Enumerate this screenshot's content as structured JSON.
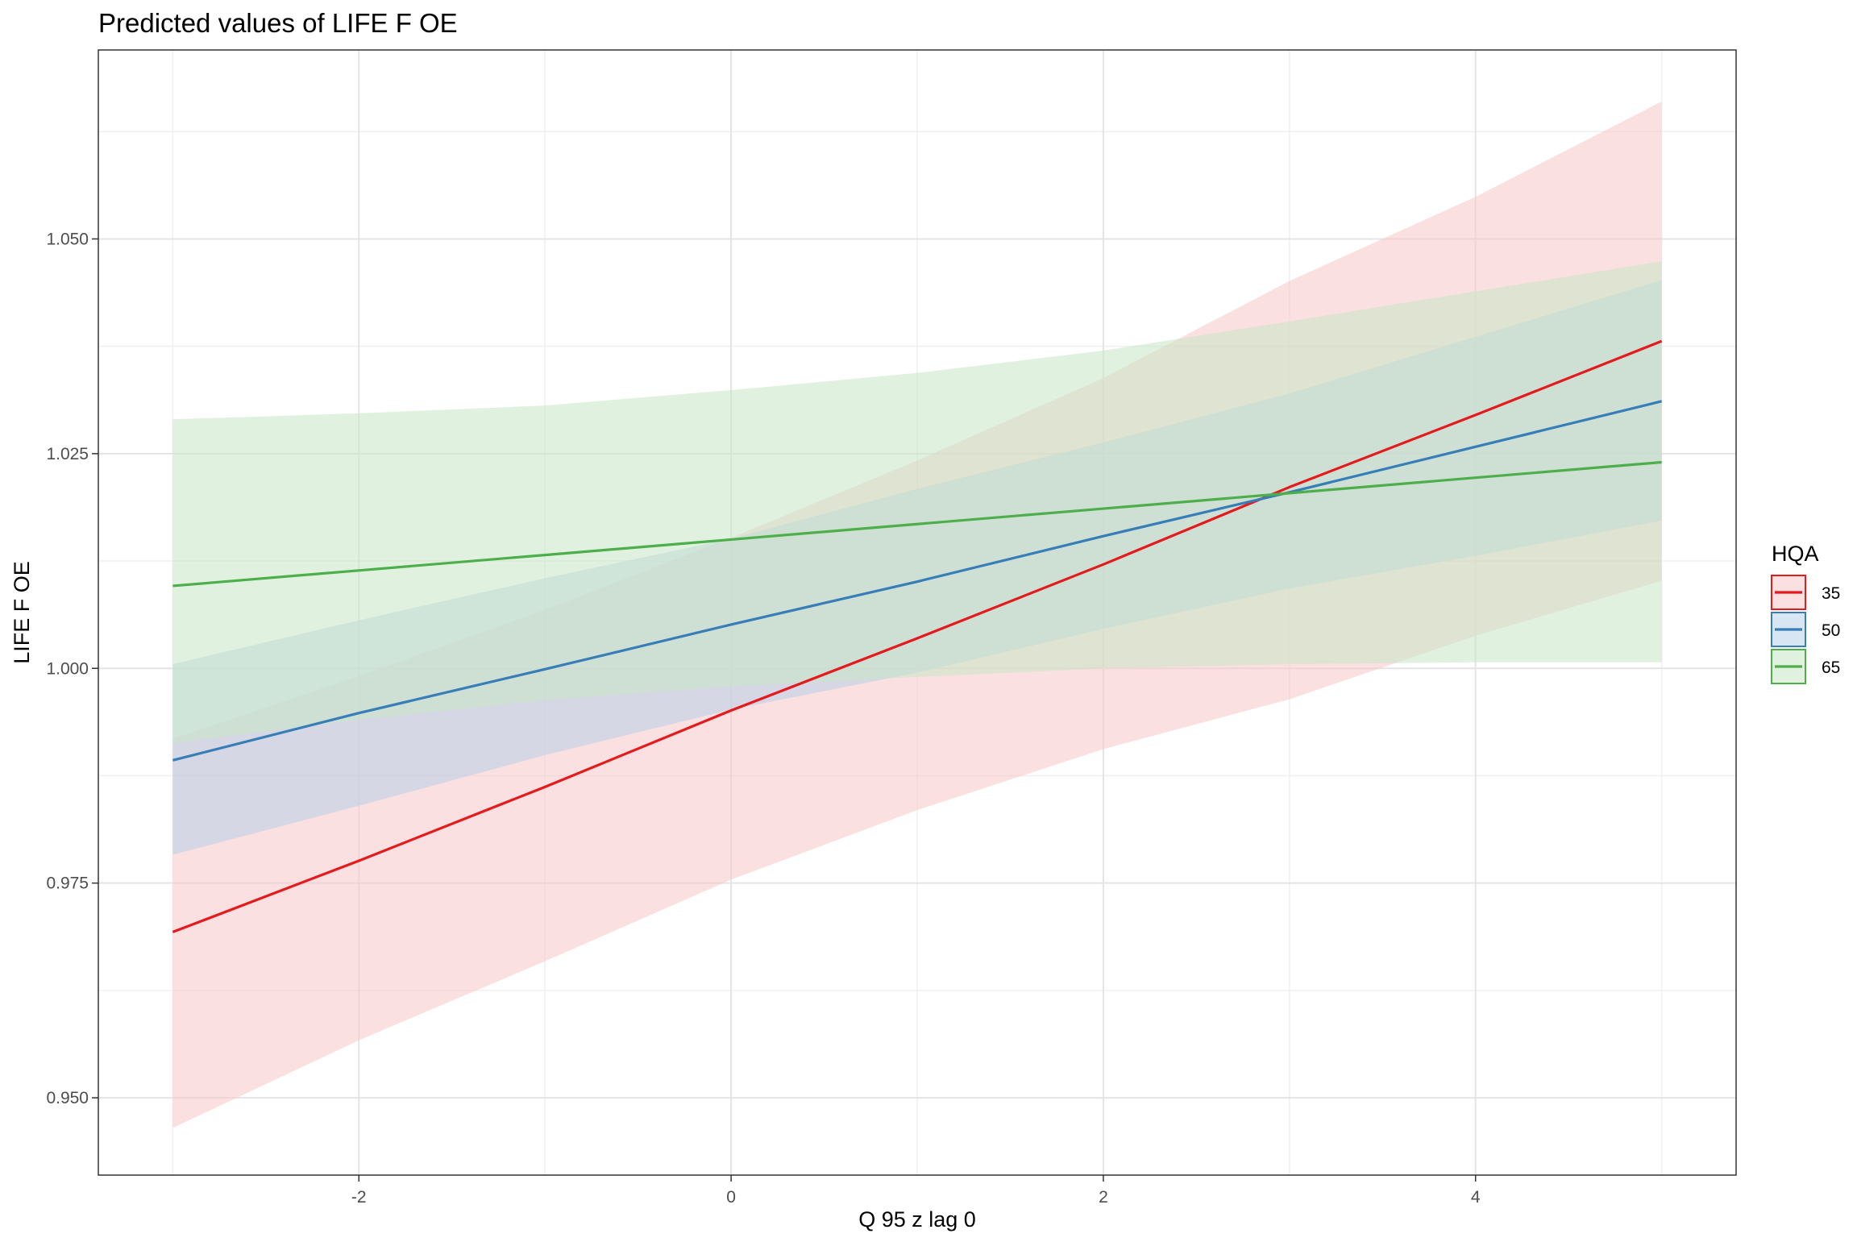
{
  "chart_data": {
    "type": "line",
    "title": "Predicted values of LIFE F OE",
    "xlabel": "Q 95 z lag 0",
    "ylabel": "LIFE F OE",
    "xlim": [
      -3.4,
      5.4
    ],
    "ylim": [
      0.941,
      1.072
    ],
    "x_ticks": [
      -2,
      0,
      2,
      4
    ],
    "x_tick_labels": [
      "-2",
      "0",
      "2",
      "4"
    ],
    "y_ticks": [
      0.95,
      0.975,
      1.0,
      1.025,
      1.05
    ],
    "y_tick_labels": [
      "0.950",
      "0.975",
      "1.000",
      "1.025",
      "1.050"
    ],
    "grid": true,
    "legend": {
      "title": "HQA",
      "placement": "right",
      "entries": [
        "35",
        "50",
        "65"
      ]
    },
    "series": [
      {
        "name": "35",
        "color": "#E41A1C",
        "fill": "#F8C6C8",
        "x": [
          -3,
          -2,
          -1,
          0,
          1,
          2,
          3,
          4,
          5
        ],
        "values": [
          0.9693,
          0.9776,
          0.9862,
          0.9951,
          1.0035,
          1.0121,
          1.0211,
          1.0295,
          1.0381
        ],
        "lower": [
          0.9465,
          0.9567,
          0.9659,
          0.9754,
          0.9835,
          0.9906,
          0.9964,
          1.0038,
          1.0102
        ],
        "upper": [
          0.9918,
          0.9991,
          1.0068,
          1.0152,
          1.0242,
          1.0338,
          1.0451,
          1.0549,
          1.066
        ]
      },
      {
        "name": "50",
        "color": "#377EB8",
        "fill": "#B8D0E8",
        "x": [
          -3,
          -2,
          -1,
          0,
          1,
          2,
          3,
          4,
          5
        ],
        "values": [
          0.9893,
          0.9948,
          0.9999,
          1.0051,
          1.0101,
          1.0154,
          1.0205,
          1.0258,
          1.0311
        ],
        "lower": [
          0.9783,
          0.984,
          0.9899,
          0.9952,
          0.9995,
          1.0046,
          1.0093,
          1.0131,
          1.0172
        ],
        "upper": [
          1.0005,
          1.0056,
          1.0105,
          1.0151,
          1.0209,
          1.0263,
          1.032,
          1.0386,
          1.0452
        ]
      },
      {
        "name": "65",
        "color": "#4DAF4A",
        "fill": "#C8E6C6",
        "x": [
          -3,
          -2,
          -1,
          0,
          1,
          2,
          3,
          4,
          5
        ],
        "values": [
          1.0096,
          1.0114,
          1.0132,
          1.015,
          1.0168,
          1.0186,
          1.0204,
          1.0222,
          1.024
        ],
        "lower": [
          0.9913,
          0.994,
          0.9963,
          0.9979,
          0.999,
          1.0,
          1.0005,
          1.0007,
          1.0007
        ],
        "upper": [
          1.029,
          1.0297,
          1.0306,
          1.0324,
          1.0344,
          1.037,
          1.0404,
          1.0439,
          1.0474
        ]
      }
    ]
  }
}
